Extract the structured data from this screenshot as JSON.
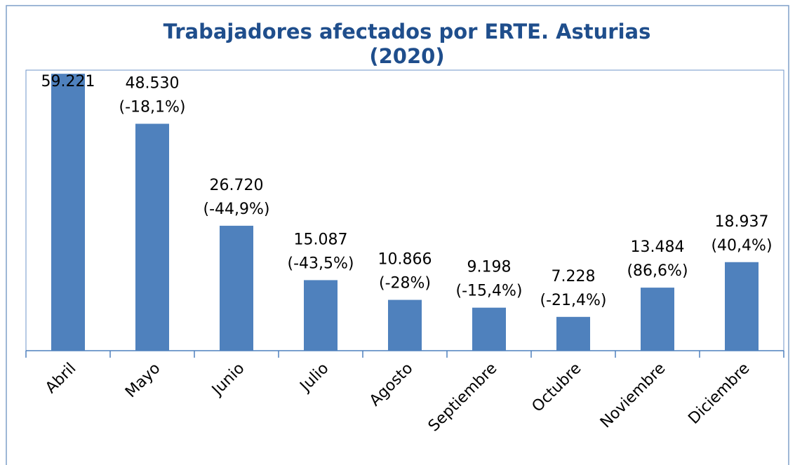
{
  "chart_data": {
    "type": "bar",
    "title": [
      "Trabajadores afectados por ERTE. Asturias",
      "(2020)"
    ],
    "categories": [
      "Abril",
      "Mayo",
      "Junio",
      "Julio",
      "Agosto",
      "Septiembre",
      "Octubre",
      "Noviembre",
      "Diciembre"
    ],
    "values": [
      59221,
      48530,
      26720,
      15087,
      10866,
      9198,
      7228,
      13484,
      18937
    ],
    "value_labels": [
      "59.221",
      "48.530",
      "26.720",
      "15.087",
      "10.866",
      "9.198",
      "7.228",
      "13.484",
      "18.937"
    ],
    "color": "#4f81bd",
    "ylim": [
      0,
      60000
    ],
    "changes": {
      "values": [
        null,
        -18.1,
        -44.9,
        -43.5,
        -28,
        -15.4,
        -21.4,
        86.6,
        40.4
      ],
      "value_labels": [
        null,
        "(-18,1%)",
        "(-44,9%)",
        "(-43,5%)",
        "(-28%)",
        "(-15,4%)",
        "(-21,4%)",
        "(86,6%)",
        "(40,4%)"
      ],
      "negative_color": "#ff0000",
      "positive_color": "#000000"
    }
  }
}
